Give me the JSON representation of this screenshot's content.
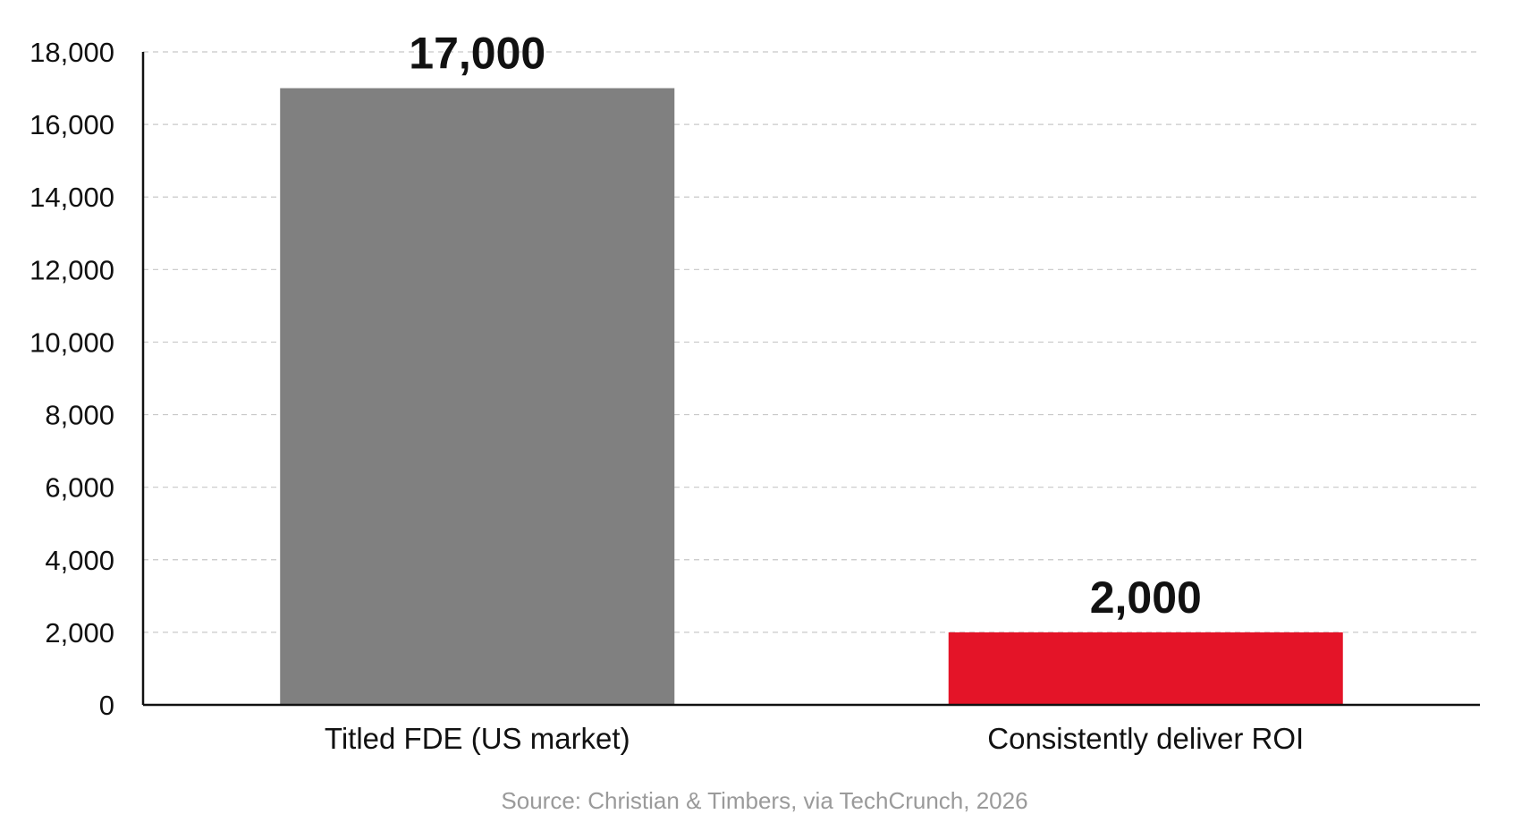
{
  "chart_data": {
    "type": "bar",
    "title": "",
    "xlabel": "",
    "ylabel": "",
    "categories": [
      "Titled FDE (US market)",
      "Consistently deliver ROI"
    ],
    "values": [
      17000,
      2000
    ],
    "data_labels": [
      "17,000",
      "2,000"
    ],
    "bar_colors": [
      "#808080",
      "#e41428"
    ],
    "ylim": [
      0,
      18000
    ],
    "yticks": [
      0,
      2000,
      4000,
      6000,
      8000,
      10000,
      12000,
      14000,
      16000,
      18000
    ],
    "ytick_labels": [
      "0",
      "2,000",
      "4,000",
      "6,000",
      "8,000",
      "10,000",
      "12,000",
      "14,000",
      "16,000",
      "18,000"
    ],
    "grid": "horizontal-dashed",
    "legend": "none"
  },
  "source": "Source: Christian & Timbers, via TechCrunch, 2026"
}
